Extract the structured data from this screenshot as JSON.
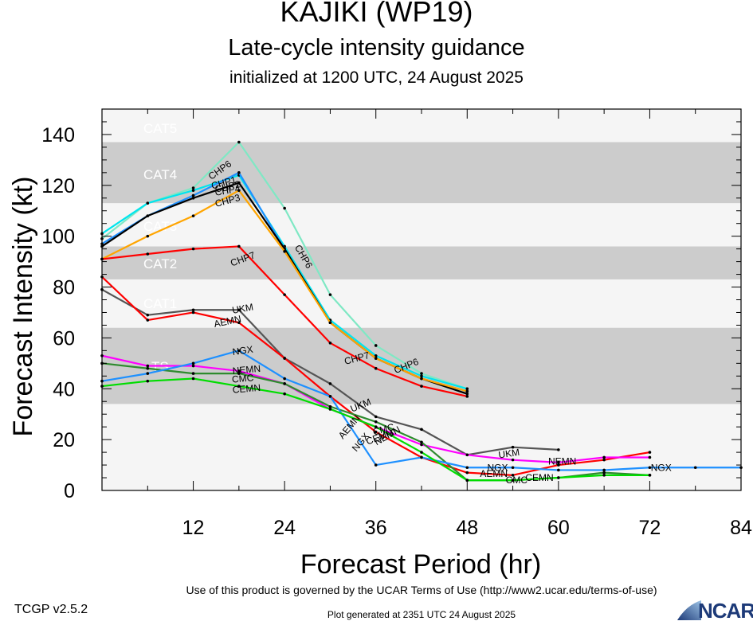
{
  "header": {
    "title": "KAJIKI (WP19)",
    "subtitle": "Late-cycle intensity guidance",
    "initialized": "initialized at 1200 UTC, 24 August 2025"
  },
  "footer": {
    "terms": "Use of this product is governed by the UCAR Terms of Use (http://www2.ucar.edu/terms-of-use)",
    "version": "TCGP v2.5.2",
    "generated": "Plot generated at 2351 UTC   24 August 2025",
    "logo_text": "NCAR"
  },
  "chart_data": {
    "type": "line",
    "xlabel": "Forecast Period (hr)",
    "ylabel": "Forecast Intensity (kt)",
    "xlim": [
      0,
      84
    ],
    "ylim": [
      0,
      150
    ],
    "xticks": [
      12,
      24,
      36,
      48,
      60,
      72,
      84
    ],
    "yticks": [
      0,
      20,
      40,
      60,
      80,
      100,
      120,
      140
    ],
    "category_bands": [
      {
        "label": "TS",
        "min": 34,
        "max": 64,
        "shaded": true
      },
      {
        "label": "CAT1",
        "min": 64,
        "max": 83,
        "shaded": false
      },
      {
        "label": "CAT2",
        "min": 83,
        "max": 96,
        "shaded": true
      },
      {
        "label": "CAT3",
        "min": 96,
        "max": 113,
        "shaded": false
      },
      {
        "label": "CAT4",
        "min": 113,
        "max": 137,
        "shaded": true
      },
      {
        "label": "CAT5",
        "min": 137,
        "max": 150,
        "shaded": false
      }
    ],
    "band_colors": {
      "shaded": "#cccccc",
      "light": "#f5f5f5"
    },
    "series": [
      {
        "name": "CHP6",
        "color": "#7fe8c4",
        "x": [
          0,
          6,
          12,
          18,
          24,
          30,
          36,
          42,
          48
        ],
        "y": [
          99,
          113,
          119,
          137,
          111,
          77,
          57,
          46,
          40
        ],
        "labels": [
          {
            "x": 15.5,
            "y": 126,
            "angle": -35
          },
          {
            "x": 26.5,
            "y": 92,
            "angle": 60
          },
          {
            "x": 40,
            "y": 49,
            "angle": -22
          }
        ]
      },
      {
        "name": "CHP1",
        "color": "#00e5ee",
        "x": [
          0,
          6,
          12,
          18,
          24,
          30,
          36,
          42,
          48
        ],
        "y": [
          101,
          113,
          118,
          124,
          96,
          67,
          53,
          45,
          40
        ],
        "labels": [
          {
            "x": 16,
            "y": 121,
            "angle": -15
          }
        ]
      },
      {
        "name": "CHP2",
        "color": "#1e90ff",
        "x": [
          0,
          6,
          12,
          18,
          24,
          30,
          36,
          42,
          48
        ],
        "y": [
          97,
          108,
          116,
          125,
          95,
          66,
          52,
          44,
          39
        ],
        "labels": [
          {
            "x": 16.5,
            "y": 119.5,
            "angle": -12
          }
        ]
      },
      {
        "name": "CHP4",
        "color": "#000000",
        "x": [
          0,
          6,
          12,
          18,
          24,
          30,
          36,
          42,
          48
        ],
        "y": [
          96,
          108,
          115,
          121,
          95,
          66,
          52,
          44,
          38
        ],
        "labels": [
          {
            "x": 16.5,
            "y": 118,
            "angle": -10
          }
        ]
      },
      {
        "name": "CHP3",
        "color": "#ffa500",
        "x": [
          0,
          6,
          12,
          18,
          24,
          30,
          36,
          42,
          48
        ],
        "y": [
          91,
          100,
          108,
          118,
          94,
          66,
          52,
          44,
          39
        ],
        "labels": [
          {
            "x": 16.5,
            "y": 114,
            "angle": -15
          }
        ]
      },
      {
        "name": "CHP7",
        "color": "#ff0000",
        "x": [
          0,
          6,
          12,
          18,
          24,
          30,
          36,
          42,
          48
        ],
        "y": [
          91,
          93,
          95,
          96,
          77,
          58,
          48,
          41,
          37
        ],
        "labels": [
          {
            "x": 18.5,
            "y": 91,
            "angle": -20
          },
          {
            "x": 33.5,
            "y": 52,
            "angle": -15
          }
        ]
      },
      {
        "name": "UKM",
        "color": "#555555",
        "x": [
          0,
          6,
          12,
          18,
          24,
          30,
          36,
          42,
          48,
          54,
          60
        ],
        "y": [
          79,
          69,
          71,
          71,
          52,
          42,
          29,
          24,
          14,
          17,
          16
        ],
        "labels": [
          {
            "x": 18.5,
            "y": 71.5,
            "angle": -10
          },
          {
            "x": 34,
            "y": 33.5,
            "angle": -22
          },
          {
            "x": 53.5,
            "y": 14.5,
            "angle": -8
          }
        ]
      },
      {
        "name": "AEMN",
        "color": "#ff0000",
        "x": [
          0,
          6,
          12,
          18,
          24,
          30,
          36,
          42,
          48,
          54,
          60,
          66,
          72
        ],
        "y": [
          84,
          67,
          70,
          66,
          52,
          37,
          23,
          13,
          7,
          6,
          10,
          12,
          15
        ],
        "labels": [
          {
            "x": 16.5,
            "y": 66.5,
            "angle": -12
          },
          {
            "x": 32.5,
            "y": 25,
            "angle": -50
          },
          {
            "x": 51.5,
            "y": 6.5,
            "angle": 0
          }
        ]
      },
      {
        "name": "NEMN",
        "color": "#ff00ff",
        "x": [
          0,
          6,
          12,
          18,
          24,
          30,
          36,
          42,
          48,
          54,
          60,
          66,
          72
        ],
        "y": [
          53,
          49,
          49,
          47,
          42,
          32,
          25,
          18,
          14,
          12,
          11,
          13,
          13
        ],
        "labels": [
          {
            "x": 19,
            "y": 47.5,
            "angle": -5
          },
          {
            "x": 37.5,
            "y": 21.5,
            "angle": -30
          },
          {
            "x": 60.5,
            "y": 11.5,
            "angle": 0
          }
        ]
      },
      {
        "name": "CMC",
        "color": "#2e8b2e",
        "x": [
          0,
          6,
          12,
          18,
          24,
          30,
          36,
          42,
          48,
          54,
          60,
          66,
          72
        ],
        "y": [
          50,
          48,
          46,
          46,
          42,
          33,
          27,
          19,
          4,
          4,
          5,
          7,
          6
        ],
        "labels": [
          {
            "x": 18.5,
            "y": 44,
            "angle": -5
          },
          {
            "x": 37,
            "y": 24,
            "angle": -15
          },
          {
            "x": 54.5,
            "y": 4,
            "angle": 0
          }
        ]
      },
      {
        "name": "NGX",
        "color": "#1e90ff",
        "x": [
          0,
          6,
          12,
          18,
          24,
          30,
          36,
          42,
          48,
          54,
          60,
          66,
          72,
          78,
          84
        ],
        "y": [
          43,
          46,
          50,
          55,
          44,
          37,
          10,
          13,
          9,
          9,
          8,
          8,
          9,
          9,
          9
        ],
        "labels": [
          {
            "x": 18.5,
            "y": 55,
            "angle": -8
          },
          {
            "x": 34,
            "y": 19,
            "angle": -50
          },
          {
            "x": 52,
            "y": 9,
            "angle": 0
          },
          {
            "x": 73.5,
            "y": 9,
            "angle": 0
          }
        ]
      },
      {
        "name": "CEMN",
        "color": "#00dd00",
        "x": [
          0,
          6,
          12,
          18,
          24,
          30,
          36,
          42,
          48,
          54,
          60,
          66,
          72
        ],
        "y": [
          41,
          43,
          44,
          41,
          38,
          32,
          25,
          15,
          4,
          4,
          5,
          6,
          6
        ],
        "labels": [
          {
            "x": 19,
            "y": 40,
            "angle": -5
          },
          {
            "x": 36.5,
            "y": 21,
            "angle": -20
          },
          {
            "x": 57.5,
            "y": 5,
            "angle": 0
          }
        ]
      }
    ]
  }
}
